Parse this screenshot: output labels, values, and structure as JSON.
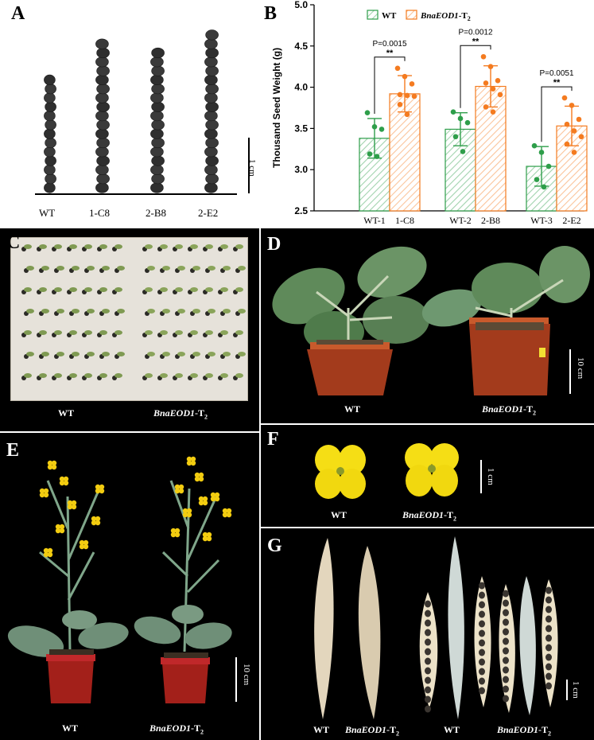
{
  "panels": {
    "A": {
      "label": "A",
      "lines": [
        "WT",
        "1-C8",
        "2-B8",
        "2-E2"
      ],
      "scale": "1 cm",
      "seed_counts": [
        13,
        17,
        16,
        18
      ]
    },
    "B": {
      "label": "B"
    },
    "C": {
      "label": "C",
      "wt": "WT",
      "mut": "BnaEOD1",
      "suffix": "-T",
      "sub": "2"
    },
    "D": {
      "label": "D",
      "wt": "WT",
      "mut": "BnaEOD1",
      "suffix": "-T",
      "sub": "2",
      "scale": "10 cm"
    },
    "E": {
      "label": "E",
      "wt": "WT",
      "mut": "BnaEOD1",
      "suffix": "-T",
      "sub": "2",
      "scale": "10 cm"
    },
    "F": {
      "label": "F",
      "wt": "WT",
      "mut": "BnaEOD1",
      "suffix": "-T",
      "sub": "2",
      "scale": "1 cm"
    },
    "G": {
      "label": "G",
      "wt": "WT",
      "mut": "BnaEOD1",
      "suffix": "-T",
      "sub": "2",
      "scale": "1 cm"
    }
  },
  "chart_data": {
    "type": "bar",
    "ylabel": "Thousand Seed Weight (g)",
    "ylim": [
      2.5,
      5.0
    ],
    "yticks": [
      "2.5",
      "3.0",
      "3.5",
      "4.0",
      "4.5",
      "5.0"
    ],
    "legend": {
      "wt": "WT",
      "mut": "BnaEOD1",
      "mut_suffix": "-T",
      "mut_sub": "2",
      "placement": "top-left"
    },
    "colors": {
      "wt": "#2e9e4a",
      "wt_fill": "#cfeccf",
      "mut": "#f47b20",
      "mut_fill": "#fde0c8"
    },
    "groups": [
      {
        "labels": [
          "WT-1",
          "1-C8"
        ],
        "means": [
          3.38,
          3.92
        ],
        "sd": [
          0.24,
          0.22
        ],
        "p": "P=0.0015",
        "sig": "**",
        "wt_points": [
          3.69,
          3.52,
          3.49,
          3.19,
          3.16
        ],
        "mut_points": [
          4.23,
          4.13,
          4.04,
          3.91,
          3.9,
          3.89,
          3.79,
          3.67
        ]
      },
      {
        "labels": [
          "WT-2",
          "2-B8"
        ],
        "means": [
          3.49,
          4.01
        ],
        "sd": [
          0.2,
          0.25
        ],
        "p": "P=0.0012",
        "sig": "**",
        "wt_points": [
          3.7,
          3.62,
          3.57,
          3.4,
          3.22
        ],
        "mut_points": [
          4.37,
          4.25,
          4.08,
          4.05,
          3.98,
          3.91,
          3.76,
          3.7
        ]
      },
      {
        "labels": [
          "WT-3",
          "2-E2"
        ],
        "means": [
          3.04,
          3.53
        ],
        "sd": [
          0.24,
          0.24
        ],
        "p": "P=0.0051",
        "sig": "**",
        "wt_points": [
          3.29,
          3.21,
          3.04,
          2.88,
          2.79
        ],
        "mut_points": [
          3.87,
          3.78,
          3.61,
          3.55,
          3.47,
          3.4,
          3.31,
          3.21
        ]
      }
    ]
  }
}
